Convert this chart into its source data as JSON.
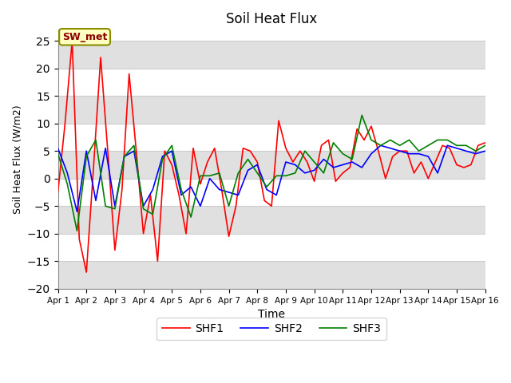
{
  "title": "Soil Heat Flux",
  "xlabel": "Time",
  "ylabel": "Soil Heat Flux (W/m2)",
  "ylim": [
    -20,
    27
  ],
  "yticks": [
    -20,
    -15,
    -10,
    -5,
    0,
    5,
    10,
    15,
    20,
    25
  ],
  "fig_bg": "#ffffff",
  "plot_bg": "#ffffff",
  "grid_color": "#cccccc",
  "band_color": "#e0e0e0",
  "line_colors": {
    "SHF1": "red",
    "SHF2": "blue",
    "SHF3": "green"
  },
  "annotation_text": "SW_met",
  "x_tick_labels": [
    "Apr 1",
    "Apr 2",
    "Apr 3",
    "Apr 4",
    "Apr 5",
    "Apr 6",
    "Apr 7",
    "Apr 8",
    "Apr 9",
    "Apr 10",
    "Apr 11",
    "Apr 12",
    "Apr 13",
    "Apr 14",
    "Apr 15",
    "Apr 16"
  ],
  "shf1_x": [
    1.0,
    1.25,
    1.5,
    1.75,
    2.0,
    2.25,
    2.5,
    2.75,
    3.0,
    3.25,
    3.5,
    3.75,
    4.0,
    4.25,
    4.5,
    4.75,
    5.0,
    5.25,
    5.5,
    5.75,
    6.0,
    6.25,
    6.5,
    6.75,
    7.0,
    7.25,
    7.5,
    7.75,
    8.0,
    8.25,
    8.5,
    8.75,
    9.0,
    9.25,
    9.5,
    9.75,
    10.0,
    10.25,
    10.5,
    10.75,
    11.0,
    11.25,
    11.5,
    11.75,
    12.0,
    12.25,
    12.5,
    12.75,
    13.0,
    13.25,
    13.5,
    13.75,
    14.0,
    14.25,
    14.5,
    14.75,
    15.0,
    15.25,
    15.5,
    15.75,
    16.0
  ],
  "shf1_y": [
    -2.5,
    10,
    25,
    -11,
    -17,
    2,
    22,
    5,
    -13,
    -2,
    19,
    5,
    -10,
    -3,
    -15,
    5,
    2.5,
    -3,
    -10,
    5.5,
    -1,
    3,
    5.5,
    -2,
    -10.5,
    -5,
    5.5,
    5,
    3,
    -4,
    -5,
    10.5,
    5.5,
    3,
    5,
    3,
    -0.5,
    6,
    7,
    -0.5,
    1,
    2,
    9,
    7,
    9.5,
    5,
    0,
    4,
    5,
    5,
    1,
    3,
    0,
    3,
    6,
    5.5,
    2.5,
    2,
    2.5,
    6,
    6.5
  ],
  "shf2_x": [
    1.0,
    1.33,
    1.67,
    2.0,
    2.33,
    2.67,
    3.0,
    3.33,
    3.67,
    4.0,
    4.33,
    4.67,
    5.0,
    5.33,
    5.67,
    6.0,
    6.33,
    6.67,
    7.0,
    7.33,
    7.67,
    8.0,
    8.33,
    8.67,
    9.0,
    9.33,
    9.67,
    10.0,
    10.33,
    10.67,
    11.0,
    11.33,
    11.67,
    12.0,
    12.33,
    12.67,
    13.0,
    13.33,
    13.67,
    14.0,
    14.33,
    14.67,
    15.0,
    15.33,
    15.67,
    16.0
  ],
  "shf2_y": [
    5.5,
    1,
    -6,
    5,
    -4,
    5.5,
    -5,
    4,
    5,
    -5,
    -2,
    4,
    5,
    -3,
    -1.5,
    -5,
    0,
    -2,
    -2.5,
    -3,
    1.5,
    2.5,
    -2,
    -3,
    3,
    2.5,
    1,
    1.5,
    3.5,
    2,
    2.5,
    3,
    2,
    4.5,
    6,
    5.5,
    5,
    4.5,
    4.5,
    4,
    1,
    6,
    5.5,
    5,
    4.5,
    5
  ],
  "shf3_x": [
    1.0,
    1.33,
    1.67,
    2.0,
    2.33,
    2.67,
    3.0,
    3.33,
    3.67,
    4.0,
    4.33,
    4.67,
    5.0,
    5.33,
    5.67,
    6.0,
    6.33,
    6.67,
    7.0,
    7.33,
    7.67,
    8.0,
    8.33,
    8.67,
    9.0,
    9.33,
    9.67,
    10.0,
    10.33,
    10.67,
    11.0,
    11.33,
    11.67,
    12.0,
    12.33,
    12.67,
    13.0,
    13.33,
    13.67,
    14.0,
    14.33,
    14.67,
    15.0,
    15.33,
    15.67,
    16.0
  ],
  "shf3_y": [
    4.5,
    -1,
    -9.5,
    4,
    7,
    -5,
    -5.5,
    4,
    6,
    -5.5,
    -6.5,
    3.5,
    6,
    -2,
    -7,
    0.5,
    0.5,
    1,
    -5,
    1,
    3.5,
    1,
    -1.5,
    0.5,
    0.5,
    1,
    5,
    3,
    1,
    6.5,
    4.5,
    3.5,
    11.5,
    7,
    6,
    7,
    6,
    7,
    5,
    6,
    7,
    7,
    6,
    6,
    5,
    6
  ]
}
